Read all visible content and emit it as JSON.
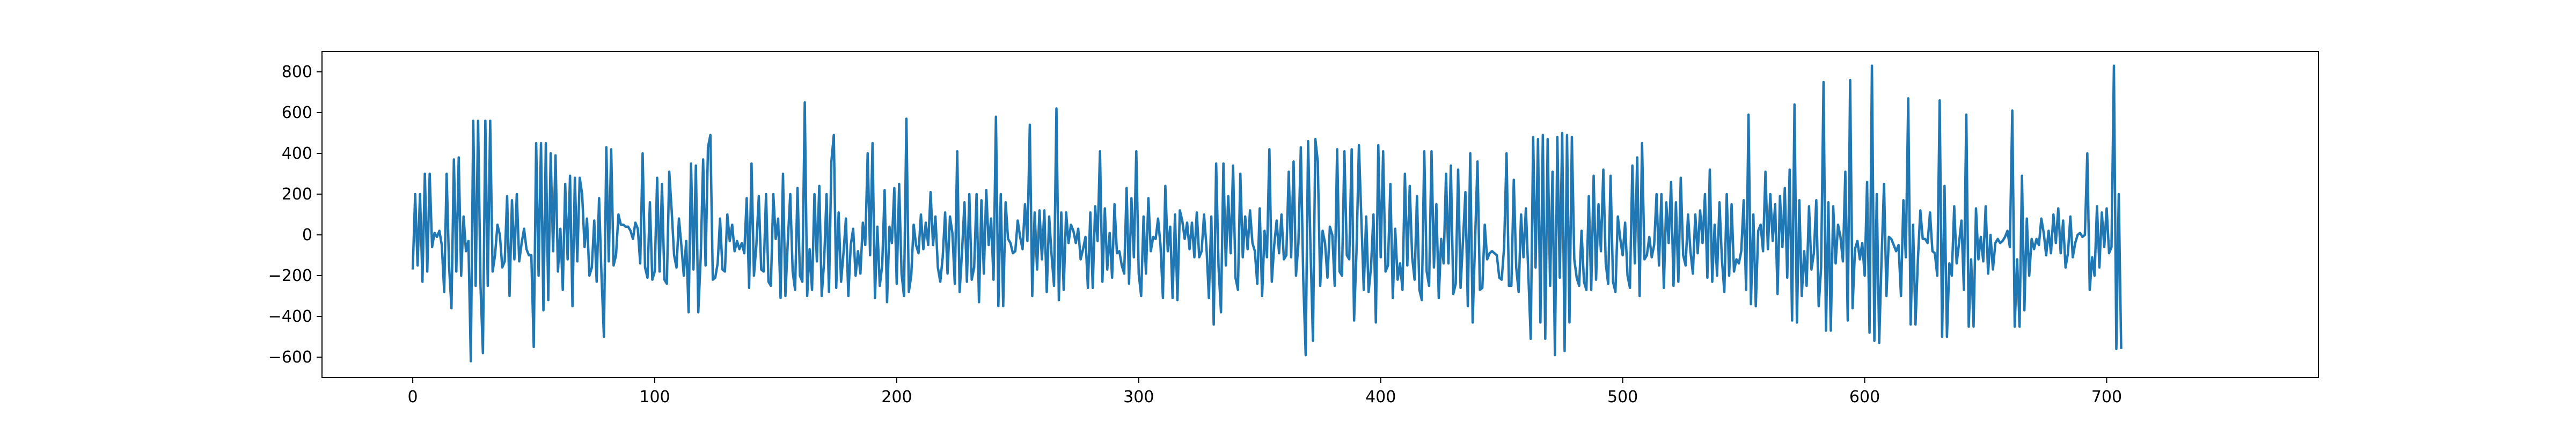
{
  "colors": {
    "line": "#1f77b4",
    "axes": "#000000",
    "background": "#ffffff"
  },
  "chart_data": {
    "type": "line",
    "title": "",
    "xlabel": "",
    "ylabel": "",
    "grid": false,
    "legend": "none",
    "xlim": [
      -37.5,
      787.5
    ],
    "ylim": [
      -700,
      900
    ],
    "x_ticks": [
      0,
      100,
      200,
      300,
      400,
      500,
      600,
      700
    ],
    "x_tick_labels": [
      "0",
      "100",
      "200",
      "300",
      "400",
      "500",
      "600",
      "700"
    ],
    "y_ticks": [
      -600,
      -400,
      -200,
      0,
      200,
      400,
      600,
      800
    ],
    "y_tick_labels": [
      "−600",
      "−400",
      "−200",
      "0",
      "200",
      "400",
      "600",
      "800"
    ],
    "x_start": 0,
    "x_step": 1,
    "series": [
      {
        "color": "#1f77b4",
        "values": [
          -170,
          200,
          -150,
          200,
          -230,
          300,
          -180,
          300,
          -60,
          10,
          -10,
          20,
          -50,
          -280,
          300,
          -150,
          -360,
          370,
          -180,
          380,
          -200,
          90,
          -80,
          -30,
          -620,
          560,
          -250,
          560,
          -250,
          -580,
          560,
          -250,
          560,
          -180,
          -100,
          50,
          0,
          -160,
          -130,
          190,
          -300,
          170,
          -120,
          200,
          -130,
          -40,
          30,
          -70,
          -100,
          -100,
          -550,
          450,
          -200,
          450,
          -370,
          450,
          -320,
          400,
          -80,
          390,
          -180,
          30,
          -270,
          250,
          -120,
          290,
          -350,
          280,
          -130,
          280,
          200,
          -60,
          80,
          -200,
          -160,
          70,
          -230,
          180,
          -200,
          -500,
          430,
          -130,
          420,
          -150,
          -100,
          100,
          50,
          50,
          40,
          40,
          20,
          -20,
          60,
          30,
          -140,
          400,
          -160,
          -210,
          160,
          -220,
          -180,
          280,
          -180,
          250,
          -220,
          -240,
          310,
          120,
          -100,
          -160,
          80,
          -50,
          -200,
          -30,
          -380,
          350,
          -170,
          340,
          -380,
          -110,
          370,
          -150,
          430,
          490,
          -220,
          -210,
          -140,
          80,
          -170,
          -180,
          100,
          -30,
          50,
          -80,
          -30,
          -70,
          -40,
          -90,
          180,
          -260,
          350,
          -200,
          -50,
          190,
          -170,
          -180,
          200,
          -230,
          -250,
          200,
          -20,
          80,
          -310,
          300,
          -300,
          -30,
          200,
          -180,
          -270,
          230,
          -200,
          -230,
          650,
          -300,
          -70,
          -270,
          200,
          -130,
          240,
          -300,
          -130,
          200,
          -280,
          360,
          490,
          -260,
          110,
          -230,
          -90,
          80,
          -300,
          -50,
          30,
          -200,
          -80,
          -190,
          60,
          -50,
          400,
          -100,
          450,
          -310,
          40,
          -250,
          -150,
          220,
          -330,
          40,
          -40,
          230,
          -240,
          250,
          -190,
          -300,
          570,
          -280,
          -200,
          50,
          -50,
          -90,
          100,
          -70,
          60,
          -50,
          210,
          -50,
          90,
          -160,
          -230,
          -110,
          110,
          -190,
          90,
          10,
          -240,
          410,
          -280,
          -80,
          160,
          -230,
          200,
          -220,
          -160,
          200,
          -330,
          170,
          -190,
          220,
          -50,
          80,
          -220,
          580,
          -350,
          200,
          -350,
          160,
          -20,
          -40,
          -90,
          -80,
          70,
          -10,
          -70,
          150,
          -30,
          540,
          -300,
          110,
          -170,
          120,
          -120,
          120,
          -280,
          90,
          -100,
          -250,
          620,
          -320,
          110,
          -270,
          110,
          -40,
          50,
          20,
          -40,
          30,
          -120,
          -70,
          -10,
          -260,
          110,
          -260,
          140,
          -30,
          410,
          -230,
          130,
          -170,
          10,
          -210,
          150,
          -90,
          -80,
          -150,
          -190,
          230,
          -240,
          180,
          -110,
          410,
          -190,
          -300,
          90,
          -190,
          180,
          -80,
          -10,
          -20,
          80,
          -50,
          -310,
          240,
          -80,
          40,
          -310,
          100,
          -320,
          120,
          70,
          -20,
          60,
          -70,
          60,
          -110,
          110,
          -110,
          -80,
          100,
          -60,
          -310,
          90,
          -440,
          350,
          -160,
          -380,
          350,
          -150,
          190,
          -90,
          340,
          -210,
          -270,
          300,
          -110,
          90,
          -70,
          120,
          -40,
          -80,
          -240,
          130,
          -300,
          20,
          -110,
          420,
          -230,
          -50,
          70,
          -90,
          100,
          -120,
          -100,
          310,
          -110,
          360,
          -200,
          -40,
          430,
          -220,
          -590,
          460,
          -70,
          -520,
          470,
          360,
          -250,
          20,
          -40,
          -210,
          40,
          0,
          -250,
          420,
          -180,
          -200,
          410,
          -100,
          -120,
          420,
          -420,
          -80,
          440,
          80,
          -270,
          90,
          -280,
          -160,
          100,
          -430,
          440,
          -110,
          410,
          -180,
          -150,
          250,
          -310,
          30,
          -220,
          -140,
          -270,
          300,
          -150,
          240,
          -110,
          -220,
          190,
          -270,
          -320,
          410,
          -180,
          -250,
          410,
          -160,
          150,
          -310,
          -20,
          -140,
          300,
          -140,
          340,
          -290,
          -240,
          320,
          -260,
          -30,
          210,
          -350,
          400,
          -430,
          -30,
          360,
          -270,
          -260,
          50,
          -120,
          -90,
          -80,
          -90,
          -100,
          -210,
          -220,
          -60,
          400,
          -250,
          -250,
          270,
          -160,
          -280,
          100,
          -110,
          130,
          -190,
          -510,
          480,
          -160,
          470,
          -430,
          490,
          -510,
          470,
          -250,
          310,
          -590,
          480,
          -210,
          500,
          -570,
          490,
          -430,
          480,
          -120,
          -210,
          -250,
          20,
          -230,
          -270,
          190,
          -270,
          290,
          -220,
          150,
          -80,
          320,
          -140,
          -240,
          290,
          -230,
          -280,
          90,
          -20,
          -100,
          60,
          -200,
          -260,
          340,
          -140,
          380,
          -300,
          450,
          -120,
          -100,
          -10,
          -110,
          -50,
          200,
          -150,
          200,
          -260,
          160,
          -40,
          260,
          -250,
          160,
          -230,
          280,
          -100,
          -150,
          100,
          -80,
          -190,
          100,
          -90,
          120,
          -40,
          200,
          -210,
          320,
          -230,
          50,
          -200,
          160,
          -120,
          -280,
          200,
          -200,
          150,
          -180,
          -120,
          -140,
          -80,
          170,
          -270,
          590,
          -340,
          100,
          -350,
          20,
          50,
          -80,
          310,
          -70,
          200,
          -30,
          150,
          -290,
          190,
          -60,
          230,
          -210,
          320,
          -420,
          640,
          -430,
          170,
          -300,
          -80,
          -250,
          140,
          -170,
          -90,
          170,
          -350,
          -160,
          750,
          -470,
          160,
          -470,
          140,
          -140,
          50,
          -10,
          -130,
          310,
          -420,
          760,
          -360,
          -70,
          -30,
          -120,
          -40,
          -200,
          260,
          -480,
          830,
          -520,
          200,
          -530,
          -110,
          250,
          -300,
          -10,
          -20,
          -50,
          -80,
          -50,
          -300,
          170,
          -110,
          670,
          -440,
          50,
          -440,
          -120,
          120,
          -20,
          -20,
          -40,
          110,
          -80,
          -90,
          -200,
          660,
          -500,
          240,
          -500,
          -140,
          -200,
          140,
          -140,
          -40,
          70,
          -270,
          590,
          -450,
          -120,
          -450,
          130,
          -120,
          -10,
          -130,
          140,
          -190,
          0,
          -170,
          -40,
          -20,
          -40,
          -30,
          -10,
          20,
          -60,
          610,
          -450,
          -120,
          -450,
          290,
          -370,
          80,
          -200,
          -20,
          -70,
          -20,
          -50,
          80,
          10,
          -100,
          20,
          -90,
          100,
          -40,
          130,
          -90,
          70,
          -160,
          -90,
          90,
          -110,
          -40,
          0,
          10,
          -10,
          0,
          400,
          -270,
          -110,
          -200,
          140,
          -160,
          110,
          -60,
          130,
          -90,
          -60,
          830,
          -560,
          200,
          -560
        ]
      }
    ]
  }
}
